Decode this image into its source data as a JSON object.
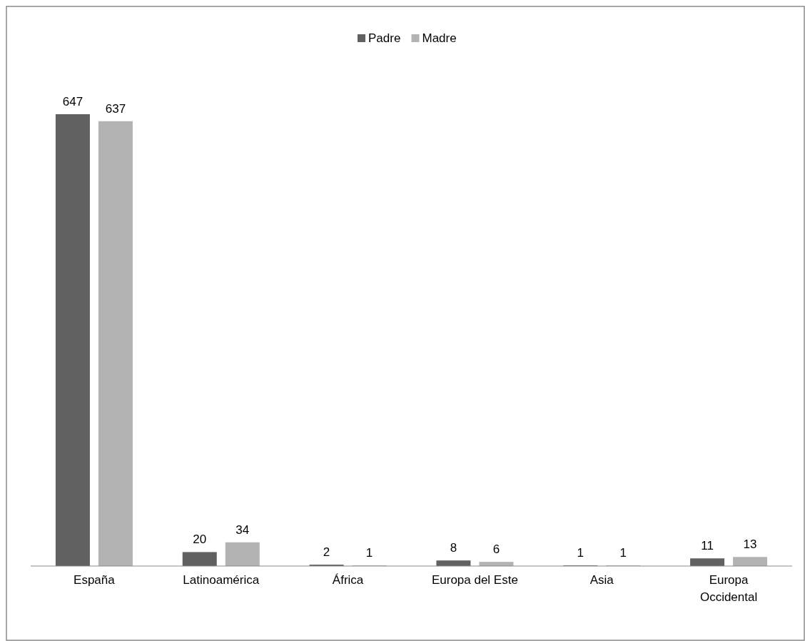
{
  "chart_data": {
    "type": "bar",
    "categories": [
      "España",
      "Latinoamérica",
      "África",
      "Europa del Este",
      "Asia",
      "Europa Occidental"
    ],
    "series": [
      {
        "name": "Padre",
        "color": "#616161",
        "values": [
          647,
          20,
          2,
          8,
          1,
          11
        ]
      },
      {
        "name": "Madre",
        "color": "#b3b3b3",
        "values": [
          637,
          34,
          1,
          6,
          1,
          13
        ]
      }
    ],
    "data_labels": true,
    "legend": "top",
    "grid": false
  }
}
